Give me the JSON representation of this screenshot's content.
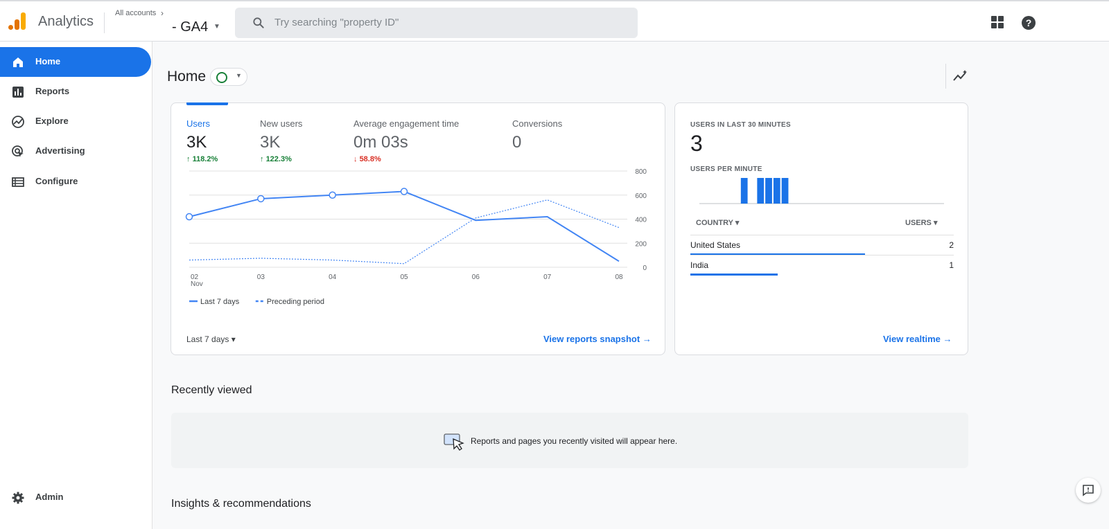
{
  "header": {
    "app_title": "Analytics",
    "breadcrumb": "All accounts",
    "property_name": "- GA4",
    "search_placeholder": "Try searching \"property ID\""
  },
  "sidebar": {
    "items": [
      {
        "label": "Home",
        "icon": "home-icon",
        "active": true
      },
      {
        "label": "Reports",
        "icon": "reports-icon",
        "active": false
      },
      {
        "label": "Explore",
        "icon": "explore-icon",
        "active": false
      },
      {
        "label": "Advertising",
        "icon": "advertising-icon",
        "active": false
      },
      {
        "label": "Configure",
        "icon": "configure-icon",
        "active": false
      }
    ],
    "admin_label": "Admin"
  },
  "main": {
    "page_title": "Home",
    "metrics": [
      {
        "label": "Users",
        "value": "3K",
        "delta": "118.2%",
        "direction": "up"
      },
      {
        "label": "New users",
        "value": "3K",
        "delta": "122.3%",
        "direction": "up"
      },
      {
        "label": "Average engagement time",
        "value": "0m 03s",
        "delta": "58.8%",
        "direction": "down"
      },
      {
        "label": "Conversions",
        "value": "0",
        "delta": "",
        "direction": ""
      }
    ],
    "range_label": "Last 7 days",
    "snapshot_link": "View reports snapshot"
  },
  "chart_data": {
    "type": "line",
    "x": [
      "02",
      "03",
      "04",
      "05",
      "06",
      "07",
      "08"
    ],
    "x_sublabel": "Nov",
    "yticks": [
      0,
      200,
      400,
      600,
      800
    ],
    "ylim": [
      0,
      800
    ],
    "series": [
      {
        "name": "Last 7 days",
        "values": [
          420,
          570,
          600,
          630,
          390,
          420,
          50
        ],
        "style": "solid",
        "color": "#4285f4"
      },
      {
        "name": "Preceding period",
        "values": [
          60,
          75,
          60,
          30,
          410,
          560,
          330
        ],
        "style": "dotted",
        "color": "#4285f4"
      }
    ]
  },
  "realtime": {
    "title": "USERS IN LAST 30 MINUTES",
    "value": "3",
    "per_minute_label": "USERS PER MINUTE",
    "per_minute_values": [
      0,
      0,
      0,
      0,
      0,
      1,
      0,
      1,
      1,
      1,
      1,
      0,
      0,
      0,
      0,
      0,
      0,
      0,
      0,
      0,
      0,
      0,
      0,
      0,
      0,
      0,
      0,
      0,
      0,
      0
    ],
    "col_country": "COUNTRY",
    "col_users": "USERS",
    "rows": [
      {
        "country": "United States",
        "users": "2",
        "share": 0.67
      },
      {
        "country": "India",
        "users": "1",
        "share": 0.33
      }
    ],
    "link": "View realtime"
  },
  "recent": {
    "title": "Recently viewed",
    "empty_text": "Reports and pages you recently visited will appear here."
  },
  "insights": {
    "title": "Insights & recommendations"
  },
  "colors": {
    "accent": "#1a73e8",
    "positive": "#188038",
    "negative": "#d93025",
    "logo_dark": "#e37400",
    "logo_light": "#f9ab00"
  }
}
